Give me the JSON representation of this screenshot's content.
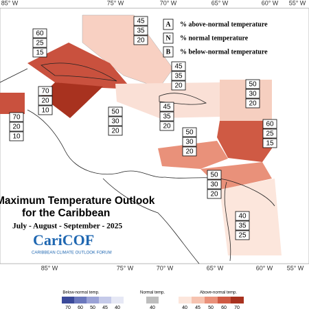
{
  "map": {
    "top_longitudes": [
      "85° W",
      "75° W",
      "70° W",
      "65° W",
      "60° W",
      "55° W"
    ],
    "bottom_longitudes": [
      "85° W",
      "75° W",
      "70° W",
      "65° W",
      "60° W",
      "55° W"
    ],
    "legend": [
      {
        "letter": "A",
        "text": "% above-normal temperature"
      },
      {
        "letter": "N",
        "text": "% normal temperature"
      },
      {
        "letter": "B",
        "text": "% below-normal temperature"
      }
    ],
    "regions": [
      {
        "above": 45,
        "normal": 35,
        "below": 20
      },
      {
        "above": 60,
        "normal": 25,
        "below": 15
      },
      {
        "above": 45,
        "normal": 35,
        "below": 20
      },
      {
        "above": 70,
        "normal": 20,
        "below": 10
      },
      {
        "above": 50,
        "normal": 30,
        "below": 20
      },
      {
        "above": 45,
        "normal": 35,
        "below": 20
      },
      {
        "above": 50,
        "normal": 30,
        "below": 20
      },
      {
        "above": 70,
        "normal": 20,
        "below": 10
      },
      {
        "above": 60,
        "normal": 25,
        "below": 15
      },
      {
        "above": 50,
        "normal": 30,
        "below": 20
      },
      {
        "above": 50,
        "normal": 30,
        "below": 20
      },
      {
        "above": 40,
        "normal": 35,
        "below": 25
      }
    ],
    "title": "Maximum Temperature Outlook",
    "subtitle": "for the Caribbean",
    "period": "July - August - September - 2025",
    "logo": "CariCOF",
    "logo_caption": "CARIBBEAN CLIMATE OUTLOOK FORUM",
    "scale": {
      "below_label": "Below-normal temp.",
      "normal_label": "Normal temp.",
      "above_label": "Above-normal temp.",
      "below_ticks": [
        70,
        60,
        50,
        45,
        40
      ],
      "normal_ticks": [
        40
      ],
      "above_ticks": [
        40,
        45,
        50,
        60,
        70
      ]
    }
  }
}
